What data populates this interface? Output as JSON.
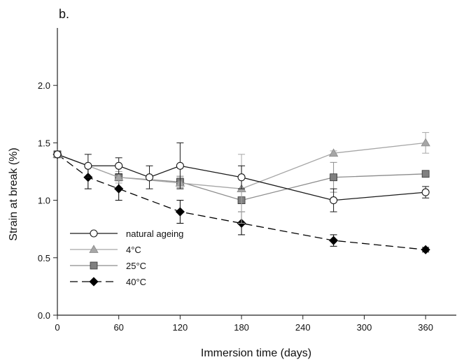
{
  "panel_label": "b.",
  "chart_data": {
    "type": "line",
    "xlabel": "Immersion time (days)",
    "ylabel": "Strain at break (%)",
    "xlim": [
      0,
      390
    ],
    "ylim": [
      0,
      2.5
    ],
    "x_ticks": [
      0,
      60,
      120,
      180,
      240,
      300,
      360
    ],
    "y_ticks": [
      0.0,
      0.5,
      1.0,
      1.5,
      2.0
    ],
    "x_tick_labels": [
      "0",
      "60",
      "120",
      "180",
      "240",
      "300",
      "360"
    ],
    "y_tick_labels": [
      "0.0",
      "0.5",
      "1.0",
      "1.5",
      "2.0"
    ],
    "legend_position": "bottom-left",
    "series": [
      {
        "name": "natural ageing",
        "marker": "circle-open",
        "color": "#1a1a1a",
        "marker_fill": "#ffffff",
        "dash": "solid",
        "x": [
          0,
          30,
          60,
          90,
          120,
          180,
          270,
          360
        ],
        "y": [
          1.4,
          1.3,
          1.3,
          1.2,
          1.3,
          1.2,
          1.0,
          1.07
        ],
        "err": [
          0.0,
          0.1,
          0.07,
          0.1,
          0.2,
          0.1,
          0.1,
          0.05
        ]
      },
      {
        "name": "4°C",
        "marker": "triangle",
        "color": "#a6a6a6",
        "marker_fill": "#a6a6a6",
        "dash": "solid",
        "x": [
          0,
          60,
          120,
          180,
          270,
          360
        ],
        "y": [
          1.4,
          1.2,
          1.15,
          1.1,
          1.41,
          1.5
        ],
        "err": [
          0.0,
          0.05,
          0.05,
          0.3,
          0.02,
          0.09
        ]
      },
      {
        "name": "25°C",
        "marker": "square",
        "color": "#8c8c8c",
        "marker_fill": "#808080",
        "dash": "solid",
        "x": [
          0,
          60,
          120,
          180,
          270,
          360
        ],
        "y": [
          1.4,
          1.2,
          1.16,
          1.0,
          1.2,
          1.23
        ],
        "err": [
          0.0,
          0.03,
          0.05,
          0.1,
          0.13,
          0.02
        ]
      },
      {
        "name": "40°C",
        "marker": "diamond",
        "color": "#000000",
        "marker_fill": "#000000",
        "dash": "dashed",
        "x": [
          0,
          30,
          60,
          120,
          180,
          270,
          360
        ],
        "y": [
          1.4,
          1.2,
          1.1,
          0.9,
          0.8,
          0.65,
          0.57
        ],
        "err": [
          0.0,
          0.1,
          0.1,
          0.1,
          0.1,
          0.05,
          0.02
        ]
      }
    ]
  }
}
